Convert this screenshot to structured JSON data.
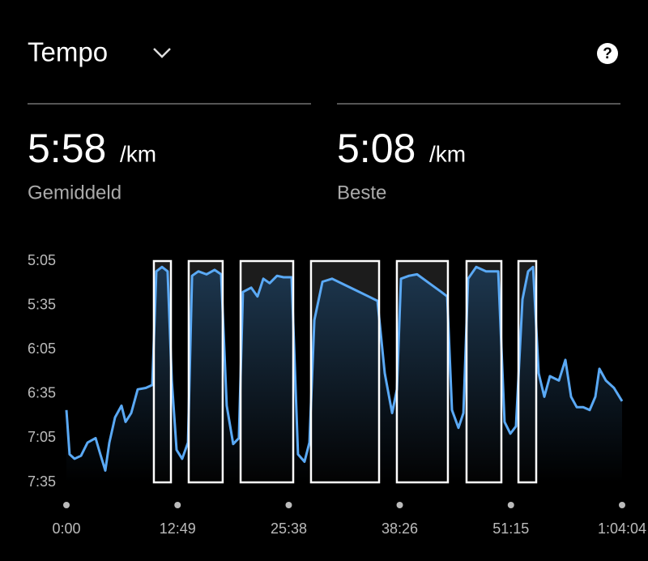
{
  "header": {
    "title": "Tempo",
    "help": "?"
  },
  "stats": [
    {
      "value": "5:58",
      "unit": "/km",
      "label": "Gemiddeld"
    },
    {
      "value": "5:08",
      "unit": "/km",
      "label": "Beste"
    }
  ],
  "chart_data": {
    "type": "line",
    "x": [
      0,
      22,
      56,
      101,
      146,
      202,
      235,
      269,
      297,
      336,
      381,
      409,
      448,
      493,
      549,
      594,
      622,
      661,
      700,
      729,
      762,
      801,
      841,
      869,
      913,
      969,
      1025,
      1070,
      1109,
      1154,
      1193,
      1221,
      1278,
      1322,
      1362,
      1406,
      1457,
      1502,
      1558,
      1602,
      1647,
      1681,
      1715,
      1771,
      1838,
      1922,
      2006,
      2090,
      2152,
      2202,
      2253,
      2286,
      2314,
      2370,
      2426,
      2510,
      2594,
      2634,
      2667,
      2712,
      2746,
      2779,
      2835,
      2903,
      2987,
      3031,
      3071,
      3110,
      3155,
      3194,
      3228,
      3267,
      3306,
      3345,
      3407,
      3452,
      3491,
      3530,
      3575,
      3620,
      3659,
      3687,
      3732,
      3788,
      3844
    ],
    "series": [
      {
        "color": "#5aa9f5",
        "values": [
          406,
          436,
          439,
          437,
          428,
          425,
          436,
          447,
          428,
          411,
          403,
          414,
          408,
          392,
          391,
          389,
          312,
          309,
          312,
          386,
          433,
          439,
          428,
          315,
          312,
          314,
          311,
          314,
          403,
          429,
          425,
          326,
          323,
          329,
          317,
          320,
          315,
          316,
          316,
          436,
          441,
          428,
          345,
          319,
          317,
          321,
          325,
          329,
          332,
          381,
          408,
          392,
          317,
          315,
          314,
          320,
          326,
          329,
          406,
          418,
          408,
          317,
          309,
          312,
          312,
          414,
          422,
          417,
          331,
          312,
          309,
          381,
          397,
          383,
          386,
          372,
          397,
          404,
          404,
          406,
          397,
          378,
          386,
          391,
          400
        ]
      }
    ],
    "intervals": [
      [
        605,
        723
      ],
      [
        846,
        1081
      ],
      [
        1205,
        1569
      ],
      [
        1692,
        2163
      ],
      [
        2286,
        2639
      ],
      [
        2768,
        3009
      ],
      [
        3127,
        3250
      ]
    ],
    "xlim": [
      0,
      3844
    ],
    "xticks": [
      {
        "value": 0,
        "label": "0:00"
      },
      {
        "value": 769,
        "label": "12:49"
      },
      {
        "value": 1538,
        "label": "25:38"
      },
      {
        "value": 2306,
        "label": "38:26"
      },
      {
        "value": 3075,
        "label": "51:15"
      },
      {
        "value": 3844,
        "label": "1:04:04"
      }
    ],
    "ylim": [
      455,
      305
    ],
    "yticks": [
      {
        "value": 305,
        "label": "5:05"
      },
      {
        "value": 335,
        "label": "5:35"
      },
      {
        "value": 365,
        "label": "6:05"
      },
      {
        "value": 395,
        "label": "6:35"
      },
      {
        "value": 425,
        "label": "7:05"
      },
      {
        "value": 455,
        "label": "7:35"
      }
    ]
  }
}
